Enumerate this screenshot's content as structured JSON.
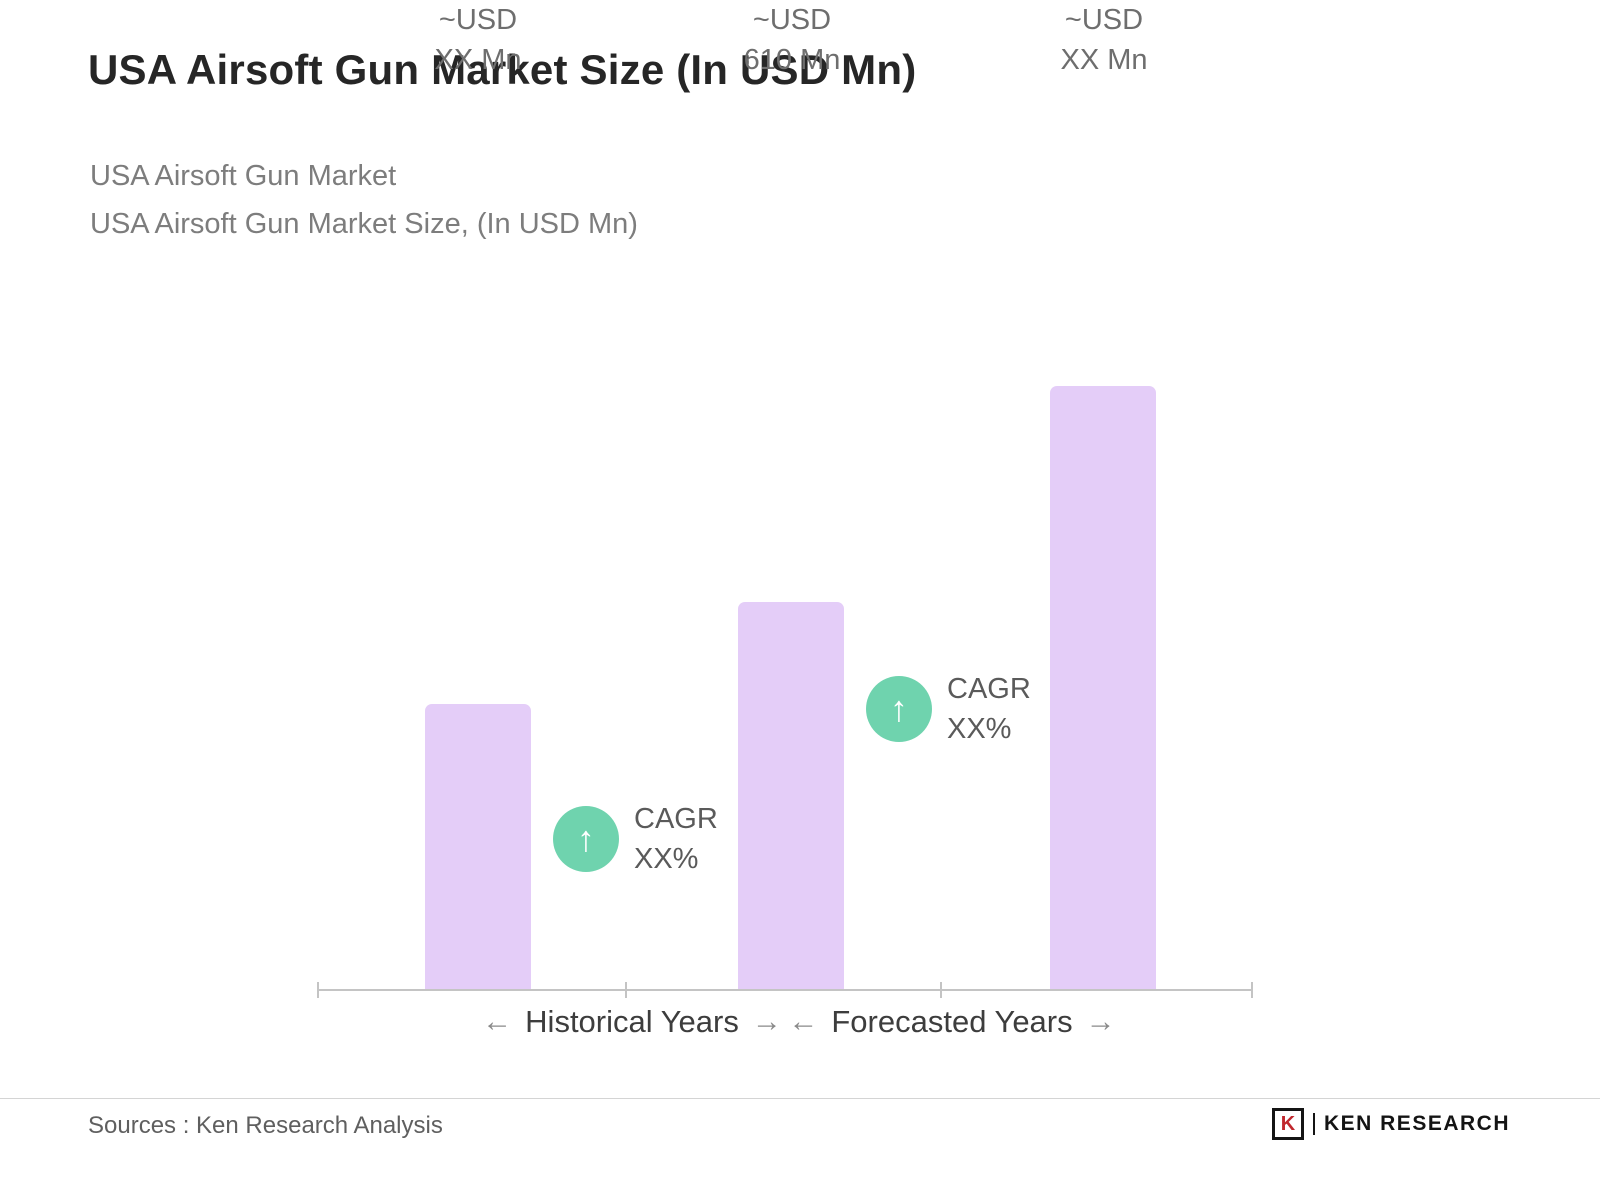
{
  "header": {
    "title": "USA Airsoft Gun Market Size (In USD Mn)",
    "subtitle_line1": "USA Airsoft Gun Market",
    "subtitle_line2": "USA Airsoft Gun Market Size, (In USD Mn)"
  },
  "chart_data": {
    "type": "bar",
    "title": "USA Airsoft Gun Market Size, (In USD Mn)",
    "unit": "USD Mn",
    "grid": false,
    "legend": false,
    "ylim": [
      0,
      1000
    ],
    "bar_color": "#E4CDF8",
    "cagr_badge_color": "#6FD3AE",
    "bars": [
      {
        "label_line1": "~USD",
        "label_line2": "XX Mn",
        "displayed_value": "XX",
        "estimated_value": 450
      },
      {
        "label_line1": "~USD",
        "label_line2": "610 Mn",
        "displayed_value": "610",
        "estimated_value": 610
      },
      {
        "label_line1": "~USD",
        "label_line2": "XX Mn",
        "displayed_value": "XX",
        "estimated_value": 950
      }
    ],
    "cagr_annotations": [
      {
        "icon": "↑",
        "line1": "CAGR",
        "line2": "XX%"
      },
      {
        "icon": "↑",
        "line1": "CAGR",
        "line2": "XX%"
      }
    ],
    "x_groups": [
      {
        "left_arrow": "←",
        "label": "Historical Years",
        "right_arrow": "→"
      },
      {
        "left_arrow": "←",
        "label": "Forecasted Years",
        "right_arrow": "→"
      }
    ]
  },
  "footer": {
    "sources": "Sources : Ken Research Analysis",
    "brand_icon_letter": "K",
    "brand_name": "KEN RESEARCH"
  }
}
